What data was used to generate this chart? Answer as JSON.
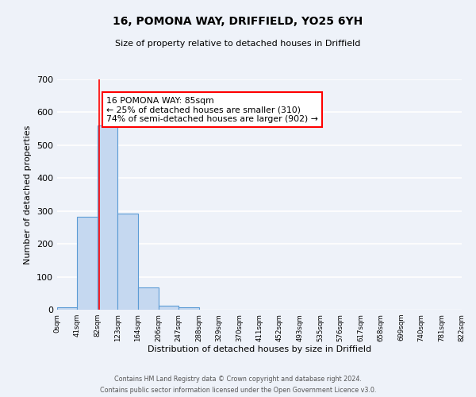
{
  "title": "16, POMONA WAY, DRIFFIELD, YO25 6YH",
  "subtitle": "Size of property relative to detached houses in Driffield",
  "xlabel": "Distribution of detached houses by size in Driffield",
  "ylabel": "Number of detached properties",
  "bar_edges": [
    0,
    41,
    82,
    123,
    164,
    206,
    247,
    288,
    329,
    370,
    411,
    452,
    493,
    535,
    576,
    617,
    658,
    699,
    740,
    781,
    822
  ],
  "bar_heights": [
    7,
    283,
    560,
    293,
    68,
    13,
    8,
    0,
    0,
    0,
    0,
    0,
    0,
    0,
    0,
    0,
    0,
    0,
    0,
    0
  ],
  "bar_color": "#c5d8f0",
  "bar_edge_color": "#5b9bd5",
  "ylim": [
    0,
    700
  ],
  "yticks": [
    0,
    100,
    200,
    300,
    400,
    500,
    600,
    700
  ],
  "red_line_x": 85,
  "annotation_box_text": "16 POMONA WAY: 85sqm\n← 25% of detached houses are smaller (310)\n74% of semi-detached houses are larger (902) →",
  "footer_line1": "Contains HM Land Registry data © Crown copyright and database right 2024.",
  "footer_line2": "Contains public sector information licensed under the Open Government Licence v3.0.",
  "bg_color": "#eef2f9",
  "plot_bg_color": "#eef2f9",
  "grid_color": "#ffffff",
  "tick_labels": [
    "0sqm",
    "41sqm",
    "82sqm",
    "123sqm",
    "164sqm",
    "206sqm",
    "247sqm",
    "288sqm",
    "329sqm",
    "370sqm",
    "411sqm",
    "452sqm",
    "493sqm",
    "535sqm",
    "576sqm",
    "617sqm",
    "658sqm",
    "699sqm",
    "740sqm",
    "781sqm",
    "822sqm"
  ]
}
